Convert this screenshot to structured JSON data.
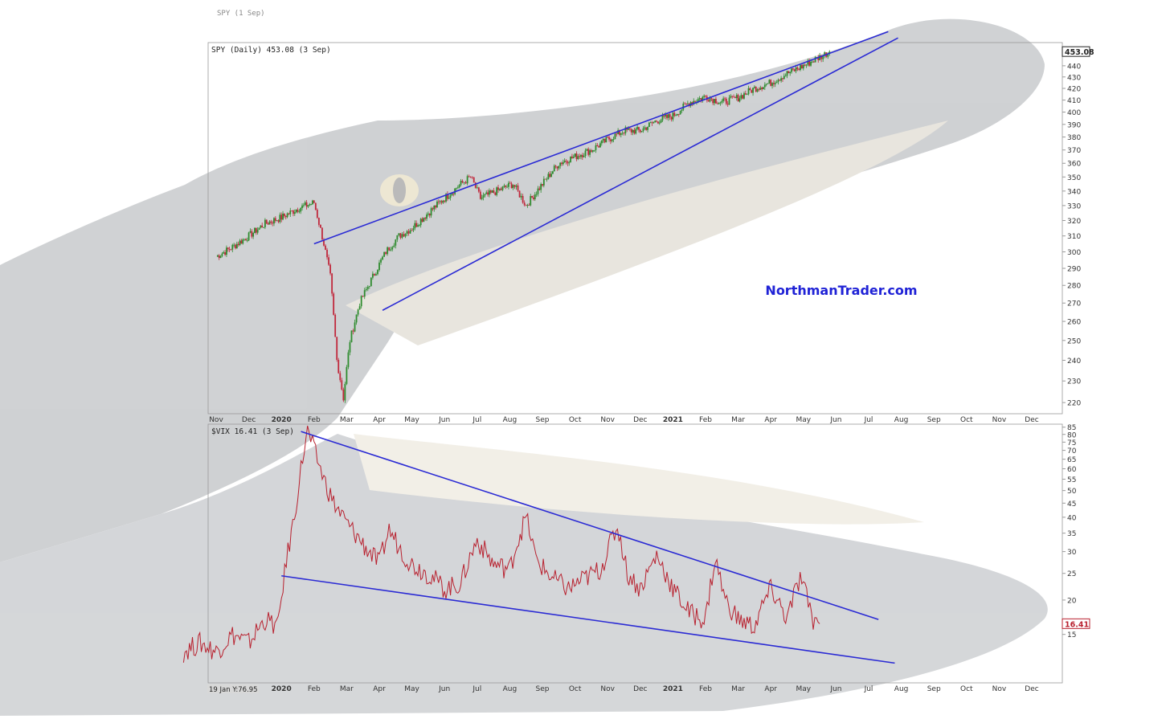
{
  "watermark": "NorthmanTrader.com",
  "colors": {
    "trendline": "#2a2ad4",
    "candle_up": "#2e8b2e",
    "candle_down": "#c0283c",
    "vix_line": "#b8202e",
    "watermark": "#1f22d6",
    "axis": "#999999",
    "label": "#333333"
  },
  "chart_data": [
    {
      "type": "candlestick",
      "header": {
        "symbol": "SPY (Daily) 453.08 (3 Sep)",
        "clipped_top": "SPY (1 Sep)"
      },
      "price_tag": "453.08",
      "y_scale": "log",
      "ylim": [
        215,
        460
      ],
      "y_ticks": [
        220,
        230,
        240,
        250,
        260,
        270,
        280,
        290,
        300,
        310,
        320,
        330,
        340,
        350,
        360,
        370,
        380,
        390,
        400,
        410,
        420,
        430,
        440
      ],
      "x_month_labels": [
        "Nov",
        "Dec",
        "2020",
        "Feb",
        "Mar",
        "Apr",
        "May",
        "Jun",
        "Jul",
        "Aug",
        "Sep",
        "Oct",
        "Nov",
        "Dec",
        "2021",
        "Feb",
        "Mar",
        "Apr",
        "May",
        "Jun",
        "Jul",
        "Aug",
        "Sep",
        "Oct",
        "Nov",
        "Dec"
      ],
      "x_bold_labels": [
        "2020",
        "2021"
      ],
      "approx_closes_by_month": [
        {
          "m": 0,
          "v": 297
        },
        {
          "m": 0.5,
          "v": 303
        },
        {
          "m": 1,
          "v": 310
        },
        {
          "m": 1.5,
          "v": 318
        },
        {
          "m": 2,
          "v": 322
        },
        {
          "m": 2.5,
          "v": 328
        },
        {
          "m": 3,
          "v": 332
        },
        {
          "m": 3.3,
          "v": 305
        },
        {
          "m": 3.5,
          "v": 285
        },
        {
          "m": 3.7,
          "v": 240
        },
        {
          "m": 3.9,
          "v": 222
        },
        {
          "m": 4.1,
          "v": 250
        },
        {
          "m": 4.4,
          "v": 270
        },
        {
          "m": 4.8,
          "v": 285
        },
        {
          "m": 5.2,
          "v": 300
        },
        {
          "m": 5.6,
          "v": 310
        },
        {
          "m": 6.0,
          "v": 315
        },
        {
          "m": 6.5,
          "v": 325
        },
        {
          "m": 7.0,
          "v": 335
        },
        {
          "m": 7.5,
          "v": 345
        },
        {
          "m": 7.8,
          "v": 350
        },
        {
          "m": 8.1,
          "v": 335
        },
        {
          "m": 8.6,
          "v": 340
        },
        {
          "m": 9.1,
          "v": 345
        },
        {
          "m": 9.5,
          "v": 330
        },
        {
          "m": 10.0,
          "v": 345
        },
        {
          "m": 10.5,
          "v": 360
        },
        {
          "m": 11.0,
          "v": 365
        },
        {
          "m": 11.5,
          "v": 370
        },
        {
          "m": 12.0,
          "v": 378
        },
        {
          "m": 12.5,
          "v": 385
        },
        {
          "m": 13.0,
          "v": 385
        },
        {
          "m": 13.5,
          "v": 393
        },
        {
          "m": 14.0,
          "v": 397
        },
        {
          "m": 14.5,
          "v": 408
        },
        {
          "m": 15.0,
          "v": 413
        },
        {
          "m": 15.5,
          "v": 408
        },
        {
          "m": 16.0,
          "v": 412
        },
        {
          "m": 16.5,
          "v": 420
        },
        {
          "m": 17.0,
          "v": 425
        },
        {
          "m": 17.5,
          "v": 433
        },
        {
          "m": 18.0,
          "v": 440
        },
        {
          "m": 18.5,
          "v": 448
        },
        {
          "m": 18.8,
          "v": 453
        }
      ],
      "trendlines": [
        {
          "x": [
            3.0,
            20.6
          ],
          "y": [
            305,
            472
          ]
        },
        {
          "x": [
            5.1,
            20.9
          ],
          "y": [
            266,
            466
          ]
        }
      ]
    },
    {
      "type": "line",
      "header": {
        "symbol": "$VIX 16.41 (3 Sep)"
      },
      "price_tag": "16.41",
      "y_scale": "log",
      "ylim": [
        10,
        86
      ],
      "y_ticks": [
        15,
        20,
        25,
        30,
        35,
        40,
        45,
        50,
        55,
        60,
        65,
        70,
        75,
        80,
        85
      ],
      "x_month_labels": [
        "2020",
        "Feb",
        "Mar",
        "Apr",
        "May",
        "Jun",
        "Jul",
        "Aug",
        "Sep",
        "Oct",
        "Nov",
        "Dec",
        "2021",
        "Feb",
        "Mar",
        "Apr",
        "May",
        "Jun",
        "Jul",
        "Aug",
        "Sep",
        "Oct",
        "Nov",
        "Dec"
      ],
      "x_bold_labels": [
        "2020",
        "2021"
      ],
      "corner_label": "19 Jan Y:76.95",
      "approx_values_by_month": [
        {
          "m": -1,
          "v": 13
        },
        {
          "m": -0.5,
          "v": 14
        },
        {
          "m": 0,
          "v": 13
        },
        {
          "m": 0.5,
          "v": 15
        },
        {
          "m": 1,
          "v": 14
        },
        {
          "m": 1.5,
          "v": 17
        },
        {
          "m": 1.9,
          "v": 16
        },
        {
          "m": 2.1,
          "v": 25
        },
        {
          "m": 2.4,
          "v": 40
        },
        {
          "m": 2.6,
          "v": 60
        },
        {
          "m": 2.8,
          "v": 82
        },
        {
          "m": 3.0,
          "v": 70
        },
        {
          "m": 3.3,
          "v": 55
        },
        {
          "m": 3.6,
          "v": 45
        },
        {
          "m": 4.0,
          "v": 38
        },
        {
          "m": 4.5,
          "v": 32
        },
        {
          "m": 5.0,
          "v": 27
        },
        {
          "m": 5.3,
          "v": 36
        },
        {
          "m": 5.7,
          "v": 30
        },
        {
          "m": 6.0,
          "v": 27
        },
        {
          "m": 6.5,
          "v": 25
        },
        {
          "m": 7.0,
          "v": 22
        },
        {
          "m": 7.5,
          "v": 23
        },
        {
          "m": 8.0,
          "v": 33
        },
        {
          "m": 8.5,
          "v": 27
        },
        {
          "m": 9.0,
          "v": 26
        },
        {
          "m": 9.5,
          "v": 40
        },
        {
          "m": 9.8,
          "v": 28
        },
        {
          "m": 10.3,
          "v": 24
        },
        {
          "m": 10.8,
          "v": 22
        },
        {
          "m": 11.3,
          "v": 24
        },
        {
          "m": 11.8,
          "v": 26
        },
        {
          "m": 12.3,
          "v": 37
        },
        {
          "m": 12.6,
          "v": 25
        },
        {
          "m": 13.0,
          "v": 22
        },
        {
          "m": 13.5,
          "v": 29
        },
        {
          "m": 14.0,
          "v": 22
        },
        {
          "m": 14.5,
          "v": 18
        },
        {
          "m": 15.0,
          "v": 17
        },
        {
          "m": 15.3,
          "v": 28
        },
        {
          "m": 15.6,
          "v": 20
        },
        {
          "m": 16.0,
          "v": 17
        },
        {
          "m": 16.5,
          "v": 16
        },
        {
          "m": 17.0,
          "v": 22
        },
        {
          "m": 17.5,
          "v": 17
        },
        {
          "m": 17.9,
          "v": 24
        },
        {
          "m": 18.3,
          "v": 17
        },
        {
          "m": 18.5,
          "v": 16.4
        }
      ],
      "trendlines": [
        {
          "x": [
            2.6,
            20.3
          ],
          "y": [
            82,
            17
          ]
        },
        {
          "x": [
            2.0,
            20.8
          ],
          "y": [
            24.5,
            11.8
          ]
        }
      ]
    }
  ]
}
